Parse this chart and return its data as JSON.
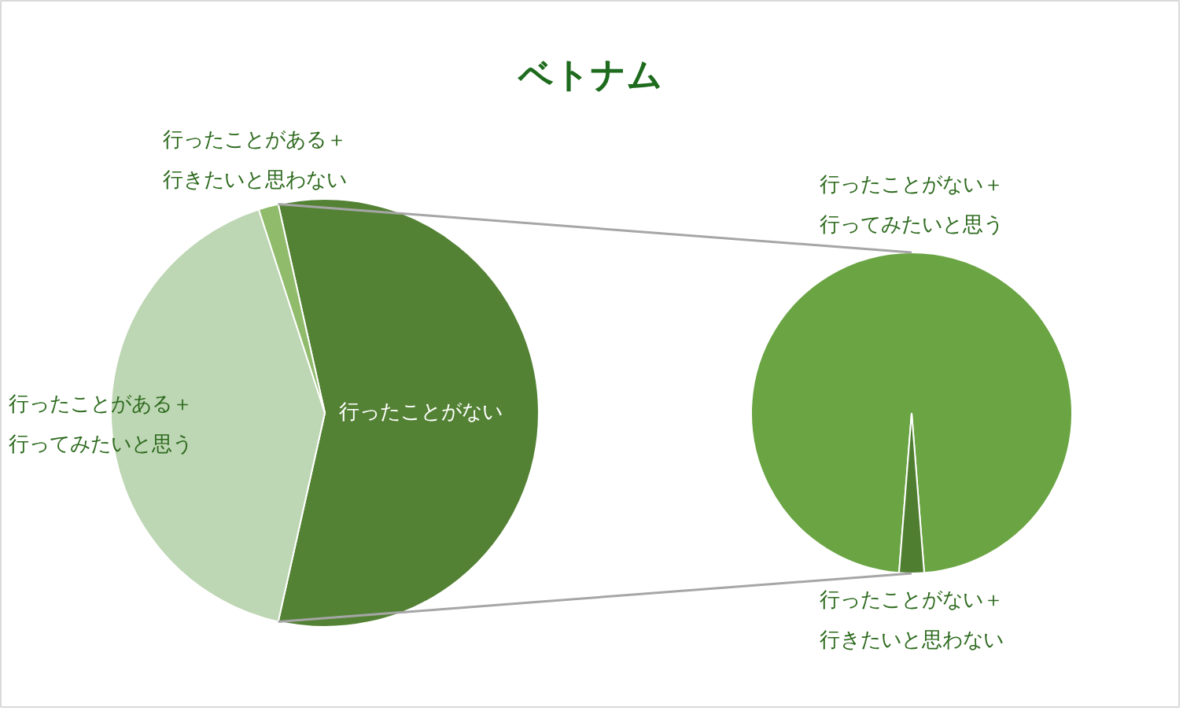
{
  "chart_data": [
    {
      "type": "pie",
      "title": "ベトナム",
      "categories": [
        "行ったことがない",
        "行ったことがある＋行ってみたいと思う",
        "行ったことがある＋行きたいと思わない"
      ],
      "values": [
        57,
        41.5,
        1.5
      ],
      "colors": [
        "#548235",
        "#bdd6b3",
        "#8fbb6b"
      ]
    },
    {
      "type": "pie",
      "categories": [
        "行ったことがない＋行ってみたいと思う",
        "行ったことがない＋行きたいと思わない"
      ],
      "values": [
        97.5,
        2.5
      ],
      "colors": [
        "#6aa443",
        "#4f7e30"
      ]
    }
  ]
}
